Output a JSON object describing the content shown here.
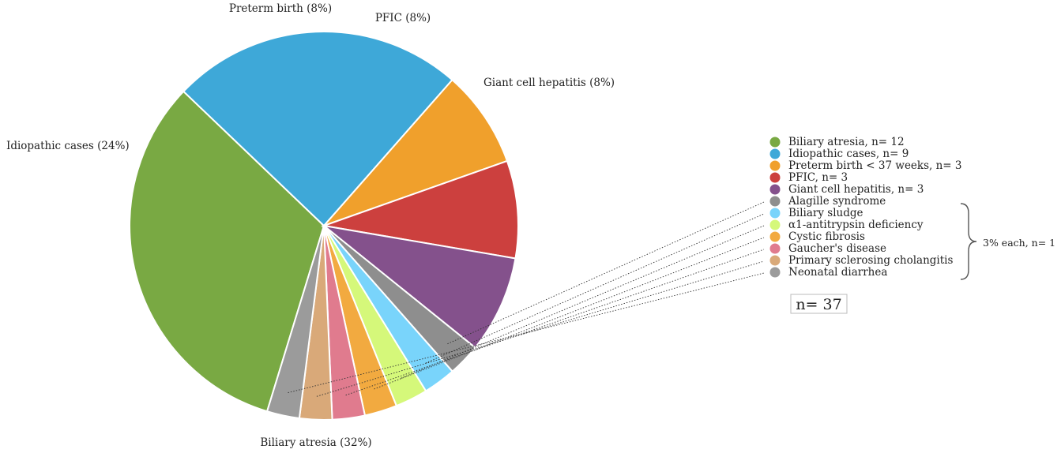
{
  "chart_data": {
    "type": "pie",
    "slices": [
      {
        "label": "Biliary atresia, n= 12",
        "outer_label": "Biliary atresia (32%)",
        "value": 12,
        "color": "#79a943"
      },
      {
        "label": "Idiopathic cases, n= 9",
        "outer_label": "Idiopathic cases (24%)",
        "value": 9,
        "color": "#3ea8d8"
      },
      {
        "label": "Preterm birth < 37 weeks, n= 3",
        "outer_label": "Preterm birth (8%)",
        "value": 3,
        "color": "#f0a02c"
      },
      {
        "label": "PFIC, n= 3",
        "outer_label": "PFIC (8%)",
        "value": 3,
        "color": "#cc403e"
      },
      {
        "label": "Giant cell hepatitis, n= 3",
        "outer_label": "Giant cell hepatitis (8%)",
        "value": 3,
        "color": "#84518c"
      },
      {
        "label": "Alagille syndrome",
        "outer_label": "",
        "value": 1,
        "color": "#8e8e8e"
      },
      {
        "label": "Biliary sludge",
        "outer_label": "",
        "value": 1,
        "color": "#79d4fb"
      },
      {
        "label": "α1-antitrypsin deficiency",
        "outer_label": "",
        "value": 1,
        "color": "#d5f87a"
      },
      {
        "label": "Cystic fibrosis",
        "outer_label": "",
        "value": 1,
        "color": "#f2aa40"
      },
      {
        "label": "Gaucher's disease",
        "outer_label": "",
        "value": 1,
        "color": "#e07b8e"
      },
      {
        "label": "Primary sclerosing cholangitis",
        "outer_label": "",
        "value": 1,
        "color": "#d9a979"
      },
      {
        "label": "Neonatal diarrhea",
        "outer_label": "",
        "value": 1,
        "color": "#9b9b9b"
      }
    ],
    "group_note": "3% each, n= 1",
    "total_label": "n= 37",
    "legend_position": "right"
  }
}
